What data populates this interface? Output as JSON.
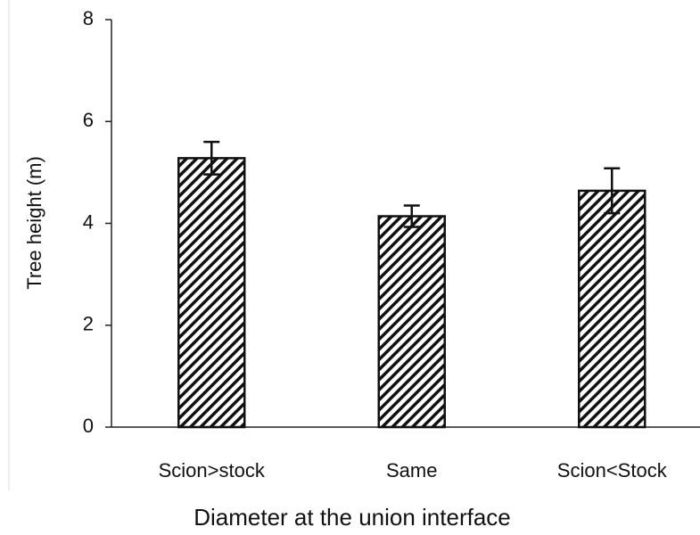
{
  "chart_data": {
    "type": "bar",
    "categories": [
      "Scion>stock",
      "Same",
      "Scion<Stock"
    ],
    "values": [
      5.28,
      4.14,
      4.64
    ],
    "errors": [
      0.32,
      0.21,
      0.44
    ],
    "color": "#ffffff",
    "ylabel": "Tree height (m)",
    "xlabel": "Diameter at the union interface",
    "ylim": [
      0,
      8
    ],
    "yticks": [
      0,
      2,
      4,
      6,
      8
    ],
    "grid": false
  }
}
